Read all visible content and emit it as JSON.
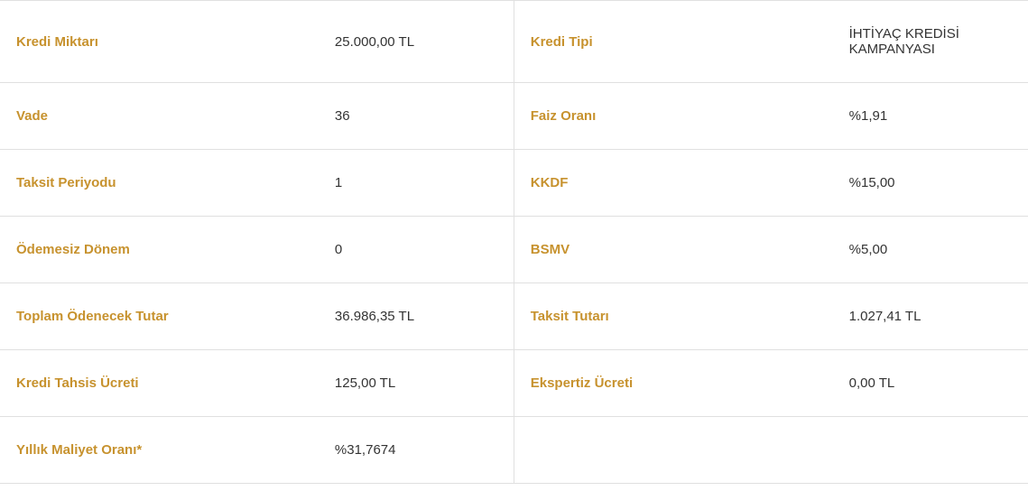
{
  "table": {
    "type": "table",
    "label_color": "#c7922e",
    "value_color": "#333333",
    "border_color": "#e0e0e0",
    "background_color": "#ffffff",
    "label_fontsize": 15,
    "value_fontsize": 15,
    "label_fontweight": "bold",
    "value_fontweight": "normal",
    "row_padding": 28,
    "rows": [
      {
        "left_label": "Kredi Miktarı",
        "left_value": "25.000,00 TL",
        "right_label": "Kredi Tipi",
        "right_value": "İHTİYAÇ KREDİSİ KAMPANYASI"
      },
      {
        "left_label": "Vade",
        "left_value": "36",
        "right_label": "Faiz Oranı",
        "right_value": "%1,91"
      },
      {
        "left_label": "Taksit Periyodu",
        "left_value": "1",
        "right_label": "KKDF",
        "right_value": "%15,00"
      },
      {
        "left_label": "Ödemesiz Dönem",
        "left_value": "0",
        "right_label": "BSMV",
        "right_value": "%5,00"
      },
      {
        "left_label": "Toplam Ödenecek Tutar",
        "left_value": "36.986,35 TL",
        "right_label": "Taksit Tutarı",
        "right_value": "1.027,41 TL"
      },
      {
        "left_label": "Kredi Tahsis Ücreti",
        "left_value": "125,00 TL",
        "right_label": "Ekspertiz Ücreti",
        "right_value": "0,00 TL"
      },
      {
        "left_label": "Yıllık Maliyet Oranı*",
        "left_value": "%31,7674",
        "right_label": "",
        "right_value": ""
      }
    ]
  }
}
